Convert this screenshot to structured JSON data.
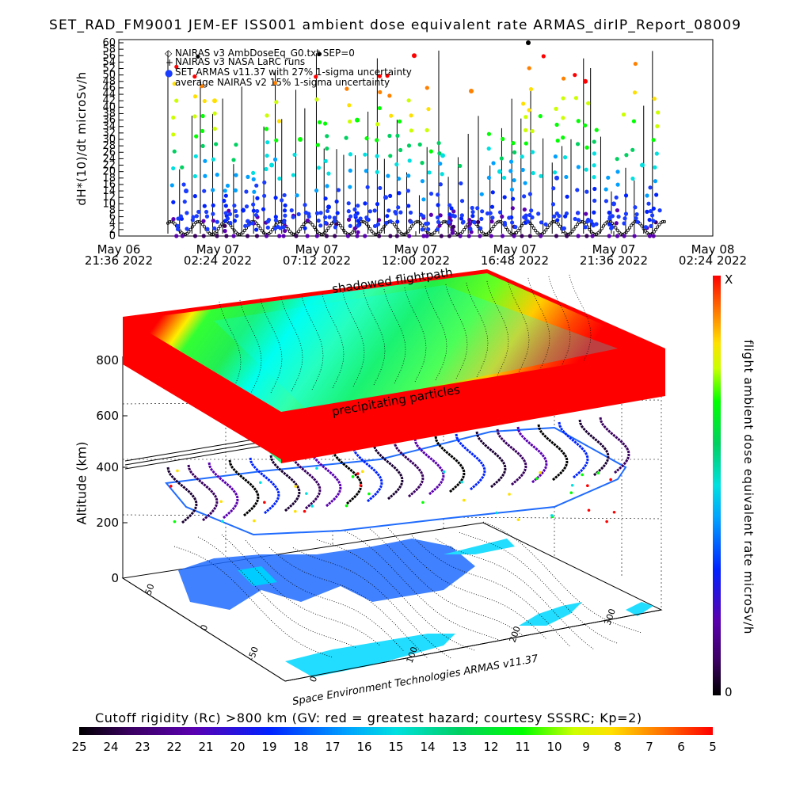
{
  "top_chart": {
    "title": "SET_RAD_FM9001  JEM-EF ISS001 ambient dose equivalent rate ARMAS_dirIP_Report_08009",
    "ylabel": "dH*(10)/dt microSv/h",
    "yticks": [
      "0",
      "2",
      "4",
      "6",
      "8",
      "10",
      "12",
      "14",
      "16",
      "18",
      "20",
      "22",
      "24",
      "26",
      "28",
      "30",
      "32",
      "34",
      "36",
      "38",
      "40",
      "42",
      "44",
      "46",
      "48",
      "50",
      "52",
      "54",
      "56",
      "58",
      "60"
    ],
    "xticks": [
      {
        "line1": "May 06",
        "line2": "21:36  2022"
      },
      {
        "line1": "May 07",
        "line2": "02:24  2022"
      },
      {
        "line1": "May 07",
        "line2": "07:12  2022"
      },
      {
        "line1": "May 07",
        "line2": "12:00  2022"
      },
      {
        "line1": "May 07",
        "line2": "16:48  2022"
      },
      {
        "line1": "May 07",
        "line2": "21:36  2022"
      },
      {
        "line1": "May 08",
        "line2": "02:24  2022"
      }
    ],
    "legend": [
      {
        "symbol": "◇",
        "text": "NAIRAS v3 AmbDoseEq_G0.txt SEP=0",
        "color": "#000000"
      },
      {
        "symbol": "+",
        "text": "NAIRAS v3 NASA LaRC runs",
        "color": "#000000"
      },
      {
        "symbol": "●",
        "text": "SET ARMAS v11.37 with 27% 1-sigma uncertainty",
        "color": "#1a3cff"
      },
      {
        "symbol": "",
        "text": "average NAIRAS v2 15% 1-sigma uncertainty",
        "color": "#000000"
      }
    ]
  },
  "chart_data": {
    "type": "scatter",
    "title": "SET_RAD_FM9001  JEM-EF ISS001 ambient dose equivalent rate ARMAS_dirIP_Report_08009",
    "ylabel": "dH*(10)/dt microSv/h",
    "ylim": [
      0,
      60
    ],
    "x_range": [
      "May 06 21:36 2022",
      "May 08 02:24 2022"
    ],
    "series": [
      {
        "name": "NAIRAS v3 AmbDoseEq_G0.txt SEP=0",
        "values": [
          0.5,
          1.5,
          3.0,
          4.5,
          3.0,
          1.5,
          0.5,
          1.5,
          3.0,
          4.5,
          3.0,
          1.5
        ]
      },
      {
        "name": "SET ARMAS v11.37 with 27% 1-sigma uncertainty",
        "values": [
          14,
          42,
          8,
          22,
          30,
          9,
          36,
          12,
          56,
          25,
          45,
          20,
          60,
          18,
          48,
          10,
          22
        ]
      }
    ]
  },
  "globe": {
    "annotations": {
      "top": "shadowed flightpath",
      "mid": "precipitating particles"
    },
    "ylabel": "Altitude (km)",
    "alt_ticks": [
      "0",
      "200",
      "400",
      "600",
      "800"
    ],
    "lat_ticks": [
      "50",
      "0",
      "-50"
    ],
    "lon_ticks": [
      "0",
      "100",
      "200",
      "300"
    ],
    "credit": "Space Environment Technologies ARMAS v11.37"
  },
  "colorbar_right": {
    "label": "flight ambient dose equivalent rate microSv/h",
    "top": "X",
    "bottom": "0"
  },
  "colorbar_bottom": {
    "title": "Cutoff rigidity (Rc) >800 km (GV: red = greatest hazard; courtesy SSSRC; Kp=2)",
    "ticks": [
      "25",
      "24",
      "23",
      "22",
      "21",
      "20",
      "19",
      "18",
      "17",
      "16",
      "15",
      "14",
      "13",
      "12",
      "11",
      "10",
      "9",
      "8",
      "7",
      "6",
      "5"
    ]
  }
}
